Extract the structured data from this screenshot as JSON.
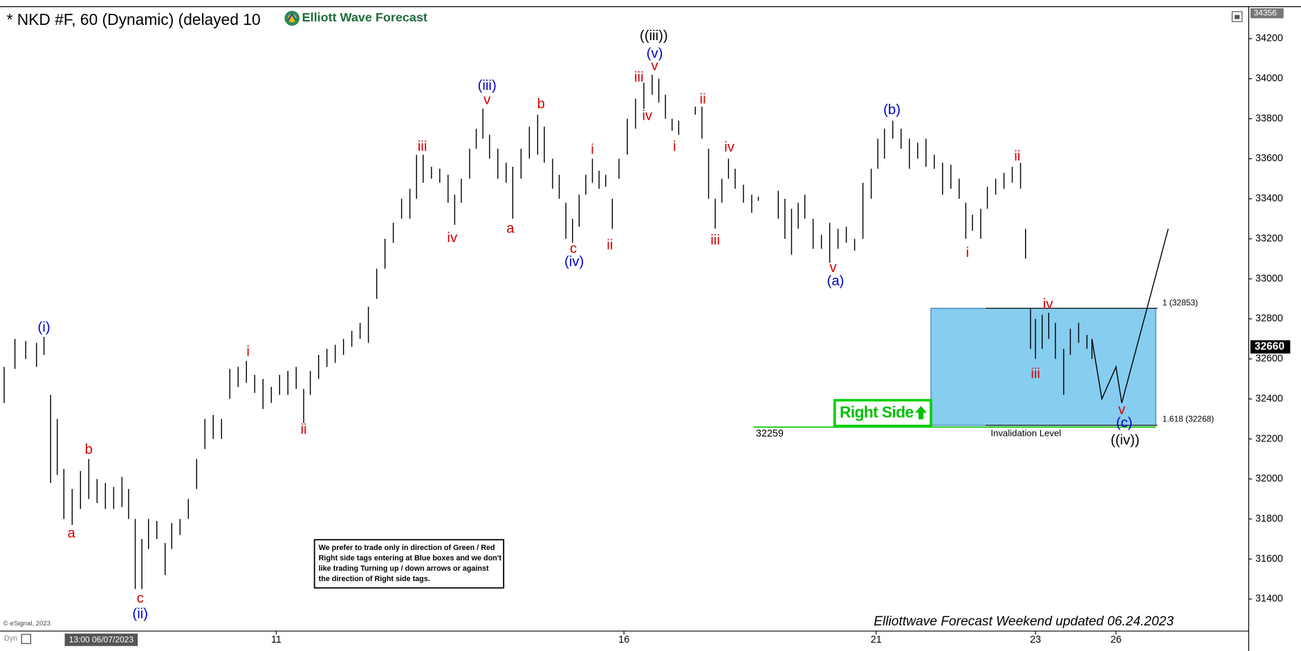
{
  "chart_data": {
    "type": "ohlc",
    "title": "* NKD #F, 60 (Dynamic) (delayed 10",
    "logo_text": "Elliott Wave Forecast",
    "color": "#000000",
    "xlim": [
      0,
      1505
    ],
    "ylim": [
      31240,
      34360
    ],
    "yticks": [
      31400,
      31600,
      31800,
      32000,
      32200,
      32400,
      32600,
      32800,
      33000,
      33200,
      33400,
      33600,
      33800,
      34000,
      34200
    ],
    "xticks": [
      {
        "value": 333,
        "label": "11"
      },
      {
        "value": 752,
        "label": "16"
      },
      {
        "value": 1056,
        "label": "21"
      },
      {
        "value": 1248,
        "label": "23"
      },
      {
        "value": 1345,
        "label": "26"
      }
    ],
    "start_label": "13:00 06/07/2023",
    "x": [
      5,
      18,
      31,
      44,
      53,
      61,
      69,
      77,
      87,
      97,
      107,
      117,
      127,
      137,
      147,
      155,
      163,
      171,
      179,
      189,
      199,
      207,
      217,
      227,
      237,
      247,
      257,
      267,
      277,
      287,
      297,
      307,
      317,
      327,
      337,
      347,
      357,
      366,
      374,
      384,
      394,
      404,
      414,
      424,
      434,
      444,
      454,
      464,
      474,
      484,
      494,
      502,
      510,
      520,
      530,
      540,
      548,
      556,
      566,
      574,
      582,
      590,
      600,
      610,
      618,
      628,
      638,
      648,
      656,
      666,
      674,
      682,
      690,
      698,
      706,
      714,
      722,
      730,
      738,
      746,
      756,
      766,
      776,
      786,
      794,
      802,
      810,
      818,
      838,
      846,
      854,
      862,
      870,
      878,
      886,
      896,
      906,
      914,
      938,
      946,
      954,
      962,
      970,
      980,
      990,
      1000,
      1010,
      1020,
      1030,
      1040,
      1050,
      1058,
      1066,
      1076,
      1086,
      1096,
      1106,
      1116,
      1126,
      1136,
      1146,
      1156,
      1164,
      1172,
      1182,
      1190,
      1200,
      1210,
      1220,
      1230,
      1236,
      1242,
      1248,
      1256,
      1264,
      1272,
      1282,
      1290,
      1300,
      1310,
      1316
    ],
    "low": [
      32380,
      32550,
      32600,
      32560,
      32620,
      31980,
      32020,
      31800,
      31770,
      31850,
      31900,
      31880,
      31850,
      31850,
      31860,
      31800,
      31450,
      31450,
      31650,
      31700,
      31520,
      31650,
      31720,
      31800,
      31950,
      32150,
      32200,
      32200,
      32400,
      32460,
      32480,
      32430,
      32350,
      32380,
      32420,
      32420,
      32450,
      32280,
      32420,
      32500,
      32560,
      32580,
      32620,
      32660,
      32700,
      32680,
      32900,
      33050,
      33180,
      33300,
      33300,
      33400,
      33480,
      33500,
      33480,
      33380,
      33270,
      33380,
      33500,
      33650,
      33700,
      33600,
      33500,
      33480,
      33300,
      33500,
      33600,
      33620,
      33580,
      33450,
      33400,
      33200,
      33180,
      33260,
      33420,
      33480,
      33450,
      33460,
      33250,
      33500,
      33620,
      33750,
      33850,
      33920,
      33880,
      33800,
      33740,
      33720,
      33820,
      33700,
      33400,
      33250,
      33380,
      33500,
      33450,
      33380,
      33330,
      33390,
      33300,
      33200,
      33120,
      33250,
      33300,
      33150,
      33150,
      33080,
      33150,
      33180,
      33140,
      33200,
      33400,
      33550,
      33600,
      33700,
      33650,
      33550,
      33600,
      33560,
      33550,
      33420,
      33450,
      33400,
      33200,
      33240,
      33200,
      33350,
      33420,
      33450,
      33480,
      33450,
      33100,
      32650,
      32600,
      32650,
      32700,
      32600,
      32420,
      32620,
      32680,
      32650,
      32600
    ],
    "high": [
      32560,
      32700,
      32690,
      32680,
      32710,
      32420,
      32300,
      32050,
      31950,
      32040,
      32100,
      32000,
      31980,
      31960,
      32010,
      31950,
      31800,
      31700,
      31800,
      31790,
      31680,
      31780,
      31800,
      31900,
      32100,
      32300,
      32320,
      32300,
      32550,
      32560,
      32590,
      32520,
      32500,
      32460,
      32520,
      32540,
      32560,
      32450,
      32540,
      32620,
      32650,
      32670,
      32700,
      32740,
      32780,
      32860,
      33050,
      33200,
      33280,
      33400,
      33450,
      33620,
      33620,
      33560,
      33550,
      33520,
      33420,
      33500,
      33650,
      33750,
      33850,
      33720,
      33650,
      33580,
      33560,
      33650,
      33760,
      33820,
      33760,
      33600,
      33520,
      33380,
      33300,
      33420,
      33520,
      33600,
      33540,
      33520,
      33400,
      33600,
      33800,
      33900,
      33980,
      34020,
      34000,
      33920,
      33800,
      33790,
      33860,
      33860,
      33650,
      33400,
      33500,
      33600,
      33550,
      33470,
      33420,
      33410,
      33440,
      33400,
      33350,
      33380,
      33420,
      33300,
      33220,
      33280,
      33250,
      33260,
      33200,
      33480,
      33550,
      33700,
      33750,
      33790,
      33750,
      33700,
      33680,
      33700,
      33620,
      33580,
      33570,
      33500,
      33380,
      33320,
      33350,
      33460,
      33500,
      33530,
      33560,
      33580,
      33250,
      32850,
      32800,
      32820,
      32830,
      32780,
      32650,
      32750,
      32780,
      32720,
      32700
    ],
    "last_price": 32660,
    "top_price": 34356,
    "box": {
      "top": 32853,
      "bottom": 32268,
      "top_label": "1 (32853)",
      "bottom_label": "1.618 (32268)",
      "color": "#87cdef"
    },
    "support": {
      "value": 32259,
      "color": "#00c800"
    },
    "projection": {
      "x": [
        1316,
        1328,
        1345,
        1352,
        1408
      ],
      "y": [
        32700,
        32400,
        32560,
        32380,
        33250
      ]
    },
    "right_side_tag": "Right Side",
    "invalidation_text": "Invalidation Level",
    "wave_labels": [
      {
        "text": "(i)",
        "color": "#0000cc"
      },
      {
        "text": "a",
        "color": "#d40000"
      },
      {
        "text": "b",
        "color": "#d40000"
      },
      {
        "text": "c",
        "color": "#d40000"
      },
      {
        "text": "(ii)",
        "color": "#0000cc"
      },
      {
        "text": "i",
        "color": "#d40000"
      },
      {
        "text": "ii",
        "color": "#d40000"
      },
      {
        "text": "iii",
        "color": "#d40000"
      },
      {
        "text": "iv",
        "color": "#d40000"
      },
      {
        "text": "(iii)",
        "color": "#0000cc"
      },
      {
        "text": "v",
        "color": "#d40000"
      },
      {
        "text": "a",
        "color": "#d40000"
      },
      {
        "text": "b",
        "color": "#d40000"
      },
      {
        "text": "c",
        "color": "#d40000"
      },
      {
        "text": "(iv)",
        "color": "#0000cc"
      },
      {
        "text": "i",
        "color": "#d40000"
      },
      {
        "text": "ii",
        "color": "#d40000"
      },
      {
        "text": "iii",
        "color": "#d40000"
      },
      {
        "text": "iv",
        "color": "#d40000"
      },
      {
        "text": "v",
        "color": "#d40000"
      },
      {
        "text": "(v)",
        "color": "#0000cc"
      },
      {
        "text": "((iii))",
        "color": "#000000"
      },
      {
        "text": "i",
        "color": "#d40000"
      },
      {
        "text": "ii",
        "color": "#d40000"
      },
      {
        "text": "iii",
        "color": "#d40000"
      },
      {
        "text": "iv",
        "color": "#d40000"
      },
      {
        "text": "v",
        "color": "#d40000"
      },
      {
        "text": "(a)",
        "color": "#0000cc"
      },
      {
        "text": "(b)",
        "color": "#0000cc"
      },
      {
        "text": "i",
        "color": "#d40000"
      },
      {
        "text": "ii",
        "color": "#d40000"
      },
      {
        "text": "iii",
        "color": "#d40000"
      },
      {
        "text": "iv",
        "color": "#d40000"
      },
      {
        "text": "v",
        "color": "#d40000"
      },
      {
        "text": "(c)",
        "color": "#0000cc"
      },
      {
        "text": "((iv))",
        "color": "#000000"
      }
    ],
    "note": [
      "We prefer to trade only in direction of Green / Red",
      "Right side tags entering at Blue boxes and we don't",
      "like trading Turning up / down arrows or against",
      "the direction of Right side tags."
    ],
    "copyright": "© eSignal, 2023",
    "dyn": "Dyn",
    "footer": "Elliottwave Forecast Weekend updated 06.24.2023"
  }
}
